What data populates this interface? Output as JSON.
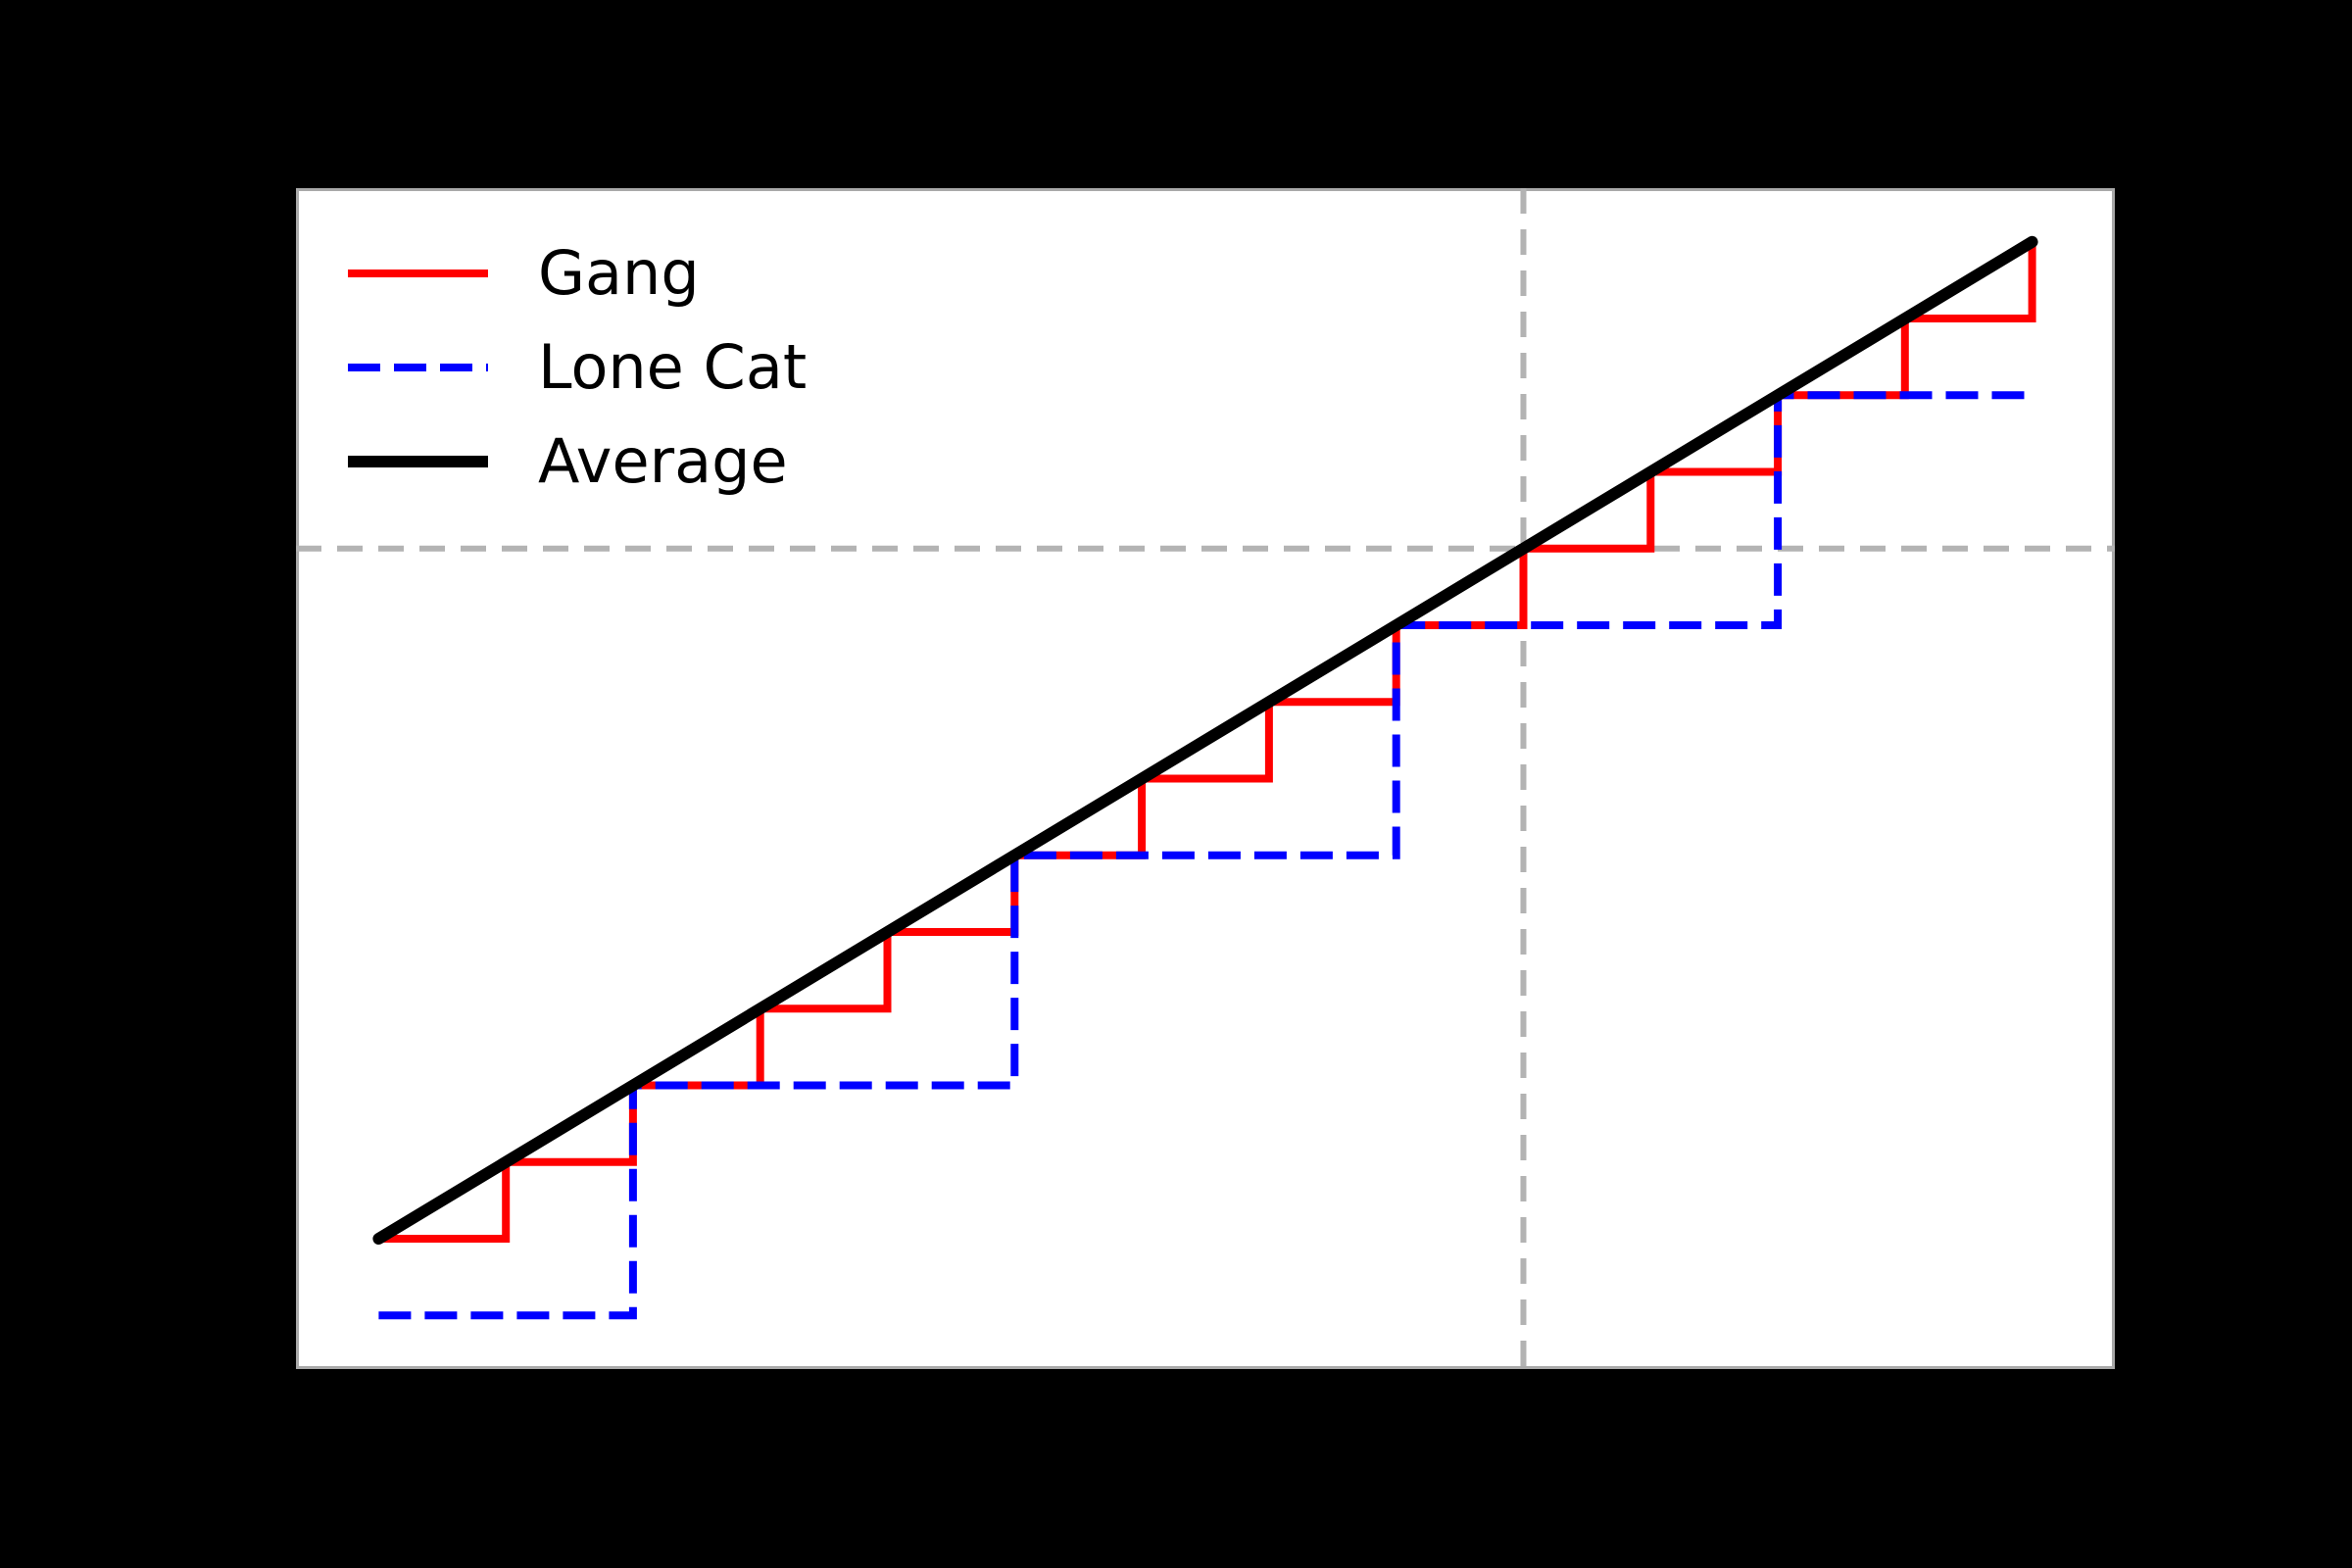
{
  "figure": {
    "background_color": "#000000",
    "plot_background_color": "#ffffff",
    "spine_color": "#a9a9a9"
  },
  "legend": {
    "position": "upper left",
    "frame": false
  },
  "chart_data": {
    "type": "line",
    "subtype": "step-functions-vs-line",
    "title": "",
    "xlabel": "",
    "ylabel": "",
    "xlim": [
      -0.65,
      13.65
    ],
    "ylim": [
      -1.7,
      13.7
    ],
    "tick_labels_visible": false,
    "gridlines": {
      "x": [
        9
      ],
      "y": [
        9
      ],
      "color": "#b3b3b3",
      "linewidth": 6,
      "dash": "26 16"
    },
    "series": [
      {
        "id": "gang",
        "name": "Gang",
        "color": "#ff0000",
        "linewidth": 8,
        "linestyle": "solid",
        "points": [
          [
            0,
            0
          ],
          [
            1,
            0
          ],
          [
            1,
            1
          ],
          [
            2,
            1
          ],
          [
            2,
            2
          ],
          [
            3,
            2
          ],
          [
            3,
            3
          ],
          [
            4,
            3
          ],
          [
            4,
            4
          ],
          [
            5,
            4
          ],
          [
            5,
            5
          ],
          [
            6,
            5
          ],
          [
            6,
            6
          ],
          [
            7,
            6
          ],
          [
            7,
            7
          ],
          [
            8,
            7
          ],
          [
            8,
            8
          ],
          [
            9,
            8
          ],
          [
            9,
            9
          ],
          [
            10,
            9
          ],
          [
            10,
            10
          ],
          [
            11,
            10
          ],
          [
            11,
            11
          ],
          [
            12,
            11
          ],
          [
            12,
            12
          ],
          [
            13,
            12
          ],
          [
            13,
            13
          ]
        ]
      },
      {
        "id": "lone-cat",
        "name": "Lone Cat",
        "color": "#0000ff",
        "linewidth": 8,
        "linestyle": "dashed",
        "dash": "33 14",
        "points": [
          [
            0,
            -1
          ],
          [
            2,
            -1
          ],
          [
            2,
            2
          ],
          [
            5,
            2
          ],
          [
            5,
            5
          ],
          [
            8,
            5
          ],
          [
            8,
            8
          ],
          [
            11,
            8
          ],
          [
            11,
            11
          ],
          [
            13,
            11
          ]
        ]
      },
      {
        "id": "average",
        "name": "Average",
        "color": "#000000",
        "linewidth": 12,
        "linestyle": "solid",
        "linecap": "round",
        "points": [
          [
            0,
            0
          ],
          [
            13,
            13
          ]
        ]
      }
    ]
  }
}
